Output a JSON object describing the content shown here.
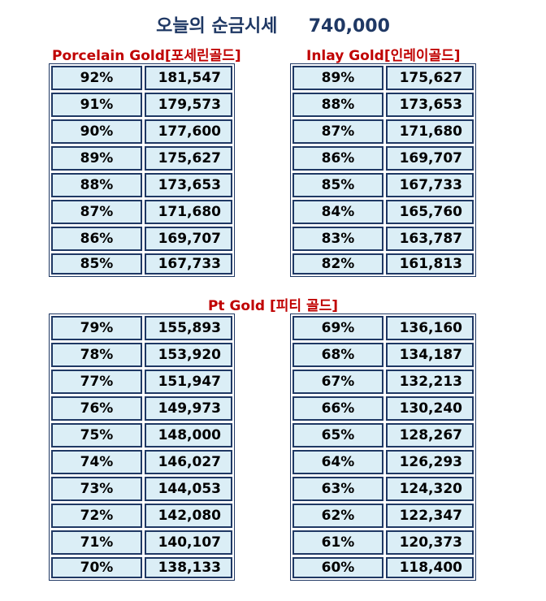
{
  "title": "오늘의 순금시세     740,000",
  "porcelain": {
    "heading": "Porcelain Gold[포세린골드]",
    "rows": [
      {
        "pct": "92%",
        "price": "181,547"
      },
      {
        "pct": "91%",
        "price": "179,573"
      },
      {
        "pct": "90%",
        "price": "177,600"
      },
      {
        "pct": "89%",
        "price": "175,627"
      },
      {
        "pct": "88%",
        "price": "173,653"
      },
      {
        "pct": "87%",
        "price": "171,680"
      },
      {
        "pct": "86%",
        "price": "169,707"
      },
      {
        "pct": "85%",
        "price": "167,733"
      }
    ]
  },
  "inlay": {
    "heading": "Inlay Gold[인레이골드]",
    "rows": [
      {
        "pct": "89%",
        "price": "175,627"
      },
      {
        "pct": "88%",
        "price": "173,653"
      },
      {
        "pct": "87%",
        "price": "171,680"
      },
      {
        "pct": "86%",
        "price": "169,707"
      },
      {
        "pct": "85%",
        "price": "167,733"
      },
      {
        "pct": "84%",
        "price": "165,760"
      },
      {
        "pct": "83%",
        "price": "163,787"
      },
      {
        "pct": "82%",
        "price": "161,813"
      }
    ]
  },
  "pt": {
    "heading": "Pt Gold [피티 골드]",
    "left_rows": [
      {
        "pct": "79%",
        "price": "155,893"
      },
      {
        "pct": "78%",
        "price": "153,920"
      },
      {
        "pct": "77%",
        "price": "151,947"
      },
      {
        "pct": "76%",
        "price": "149,973"
      },
      {
        "pct": "75%",
        "price": "148,000"
      },
      {
        "pct": "74%",
        "price": "146,027"
      },
      {
        "pct": "73%",
        "price": "144,053"
      },
      {
        "pct": "72%",
        "price": "142,080"
      },
      {
        "pct": "71%",
        "price": "140,107"
      },
      {
        "pct": "70%",
        "price": "138,133"
      }
    ],
    "right_rows": [
      {
        "pct": "69%",
        "price": "136,160"
      },
      {
        "pct": "68%",
        "price": "134,187"
      },
      {
        "pct": "67%",
        "price": "132,213"
      },
      {
        "pct": "66%",
        "price": "130,240"
      },
      {
        "pct": "65%",
        "price": "128,267"
      },
      {
        "pct": "64%",
        "price": "126,293"
      },
      {
        "pct": "63%",
        "price": "124,320"
      },
      {
        "pct": "62%",
        "price": "122,347"
      },
      {
        "pct": "61%",
        "price": "120,373"
      },
      {
        "pct": "60%",
        "price": "118,400"
      }
    ]
  }
}
